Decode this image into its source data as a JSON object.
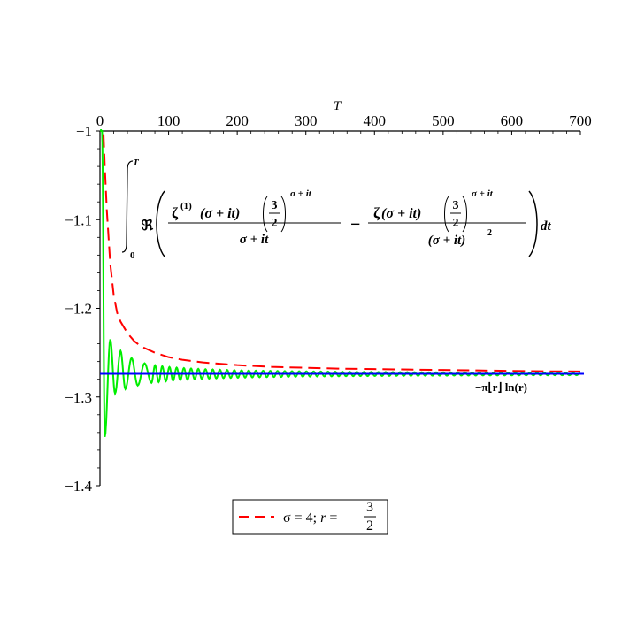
{
  "chart_data": {
    "type": "line",
    "xlabel": "T",
    "ylabel": "",
    "xlim": [
      0,
      700
    ],
    "ylim": [
      -1.4,
      -1.0
    ],
    "x_ticks": [
      0,
      100,
      200,
      300,
      400,
      500,
      600,
      700
    ],
    "x_tick_labels": [
      "0",
      "100",
      "200",
      "300",
      "400",
      "500",
      "600",
      "700"
    ],
    "y_ticks": [
      -1.0,
      -1.1,
      -1.2,
      -1.3,
      -1.4
    ],
    "y_tick_labels": [
      "−1",
      "−1.1",
      "−1.2",
      "−1.3",
      "−1.4"
    ],
    "x_axis_position": "top",
    "grid": false,
    "legend_position": "bottom",
    "colors": {
      "red": "#ff0000",
      "green": "#00ee00",
      "blue": "#0000ff"
    },
    "series": [
      {
        "name": "σ = 4; r = 3/2",
        "color": "#ff0000",
        "style": "dashed",
        "x": [
          2,
          4,
          7,
          10,
          15,
          20,
          25,
          30,
          40,
          50,
          60,
          80,
          100,
          120,
          150,
          200,
          250,
          300,
          350,
          400,
          450,
          500,
          550,
          600,
          650,
          700
        ],
        "y": [
          -0.9,
          -0.98,
          -1.04,
          -1.09,
          -1.15,
          -1.185,
          -1.205,
          -1.215,
          -1.228,
          -1.237,
          -1.243,
          -1.25,
          -1.255,
          -1.258,
          -1.261,
          -1.264,
          -1.266,
          -1.267,
          -1.268,
          -1.2685,
          -1.269,
          -1.2695,
          -1.27,
          -1.2705,
          -1.271,
          -1.2712
        ]
      },
      {
        "name": "integral",
        "color": "#00ee00",
        "style": "solid",
        "limit": -1.274,
        "peaks": [
          [
            3,
            -1.0
          ],
          [
            7,
            -1.345
          ],
          [
            15,
            -1.235
          ],
          [
            22,
            -1.296
          ],
          [
            30,
            -1.248
          ],
          [
            37,
            -1.291
          ],
          [
            46,
            -1.256
          ],
          [
            55,
            -1.287
          ],
          [
            65,
            -1.262
          ],
          [
            75,
            -1.284
          ]
        ],
        "decay_amplitude_at_100": 0.008,
        "period": 10.5
      },
      {
        "name": "−π⌊r⌋ ln(r)",
        "color": "#0000ff",
        "style": "solid",
        "x": [
          0,
          700
        ],
        "y": [
          -1.2738,
          -1.2738
        ]
      }
    ],
    "annotations": {
      "formula_integral_upper": "T",
      "formula_integral_lower": "0",
      "formula_real": "ℜ",
      "formula_zeta": "ζ",
      "formula_deriv": "(1)",
      "formula_arg": "(σ + it)",
      "formula_den": "σ + it",
      "formula_den2": "(σ + it)",
      "formula_sq": "2",
      "formula_three": "3",
      "formula_two": "2",
      "formula_exp": "σ + it",
      "formula_minus": "−",
      "formula_dt": "dt",
      "line_label": "−π⌊r⌋ ln(r)"
    },
    "legend": {
      "label_prefix": "σ = 4; ",
      "label_r": "r",
      "label_eq": " = ",
      "frac_num": "3",
      "frac_den": "2"
    }
  }
}
